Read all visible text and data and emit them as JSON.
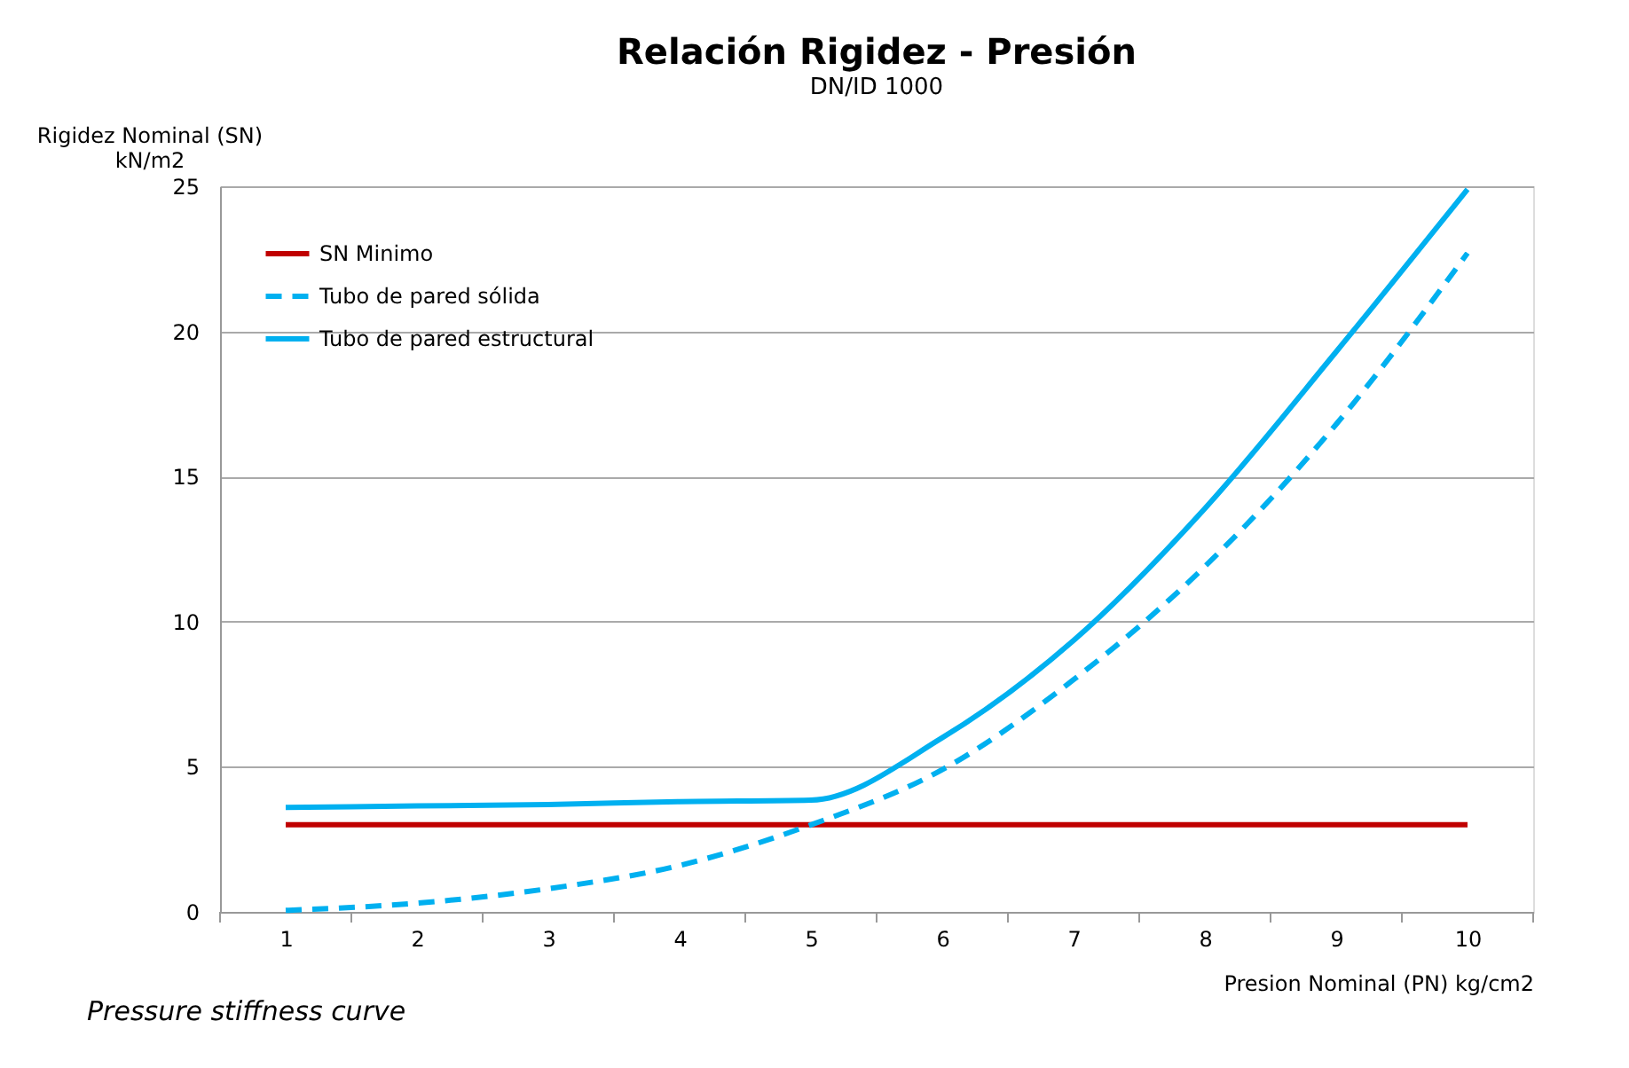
{
  "chart_data": {
    "type": "line",
    "title": "Relación Rigidez - Presión",
    "subtitle": "DN/ID 1000",
    "xlabel": "Presion Nominal (PN) kg/cm2",
    "ylabel": "Rigidez Nominal (SN)\nkN/m2",
    "annotations": [
      "Pressure stiffness curve"
    ],
    "categories": [
      "1",
      "2",
      "3",
      "4",
      "5",
      "6",
      "7",
      "8",
      "9",
      "10"
    ],
    "series": [
      {
        "name": "SN Minimo",
        "color": "#c00000",
        "line_style": "solid",
        "values": [
          3,
          3,
          3,
          3,
          3,
          3,
          3,
          3,
          3,
          3
        ]
      },
      {
        "name": "Tubo de pared sólida",
        "color": "#00b0f0",
        "line_style": "dashed",
        "values": [
          0.05,
          0.3,
          0.8,
          1.6,
          3.0,
          4.9,
          8.0,
          11.9,
          16.8,
          22.7
        ]
      },
      {
        "name": "Tubo de pared estructural",
        "color": "#00b0f0",
        "line_style": "solid",
        "values": [
          3.6,
          3.65,
          3.7,
          3.8,
          3.85,
          6.0,
          9.35,
          13.9,
          19.3,
          24.9
        ]
      }
    ],
    "ylim": [
      0,
      25
    ],
    "yticks": [
      0,
      5,
      10,
      15,
      20,
      25
    ],
    "grid": "y",
    "legend": "top left",
    "marker": "none"
  }
}
